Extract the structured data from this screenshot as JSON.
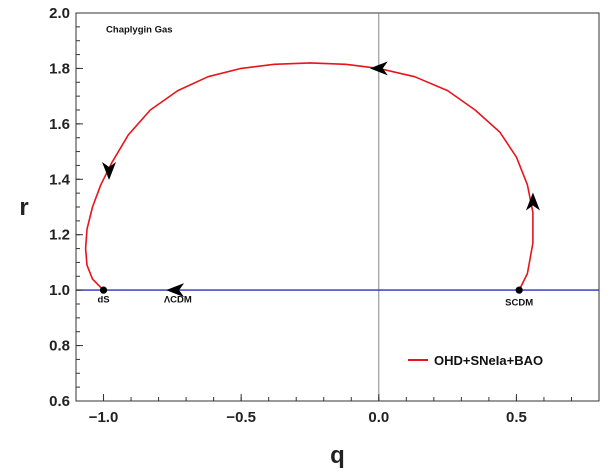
{
  "chart_data": {
    "type": "line",
    "title": "",
    "xlabel": "q",
    "ylabel": "r",
    "xlim": [
      -1.1,
      0.8
    ],
    "ylim": [
      0.6,
      2.0
    ],
    "x_ticks": [
      -1.0,
      -0.5,
      0.0,
      0.5
    ],
    "y_ticks": [
      0.6,
      0.8,
      1.0,
      1.2,
      1.4,
      1.6,
      1.8,
      2.0
    ],
    "x_tick_labels": [
      "−1.0",
      "−0.5",
      "0.0",
      "0.5"
    ],
    "y_tick_labels": [
      "0.6",
      "0.8",
      "1.0",
      "1.2",
      "1.4",
      "1.6",
      "1.8",
      "2.0"
    ],
    "grid": false,
    "legend": {
      "position": "bottom-right",
      "entries": [
        "OHD+SNeIa+BAO"
      ]
    },
    "series": [
      {
        "name": "OHD+SNeIa+BAO",
        "color": "#e8141c",
        "x": [
          0.51,
          0.54,
          0.56,
          0.56,
          0.54,
          0.5,
          0.44,
          0.35,
          0.25,
          0.13,
          0.0,
          -0.12,
          -0.25,
          -0.38,
          -0.5,
          -0.62,
          -0.73,
          -0.83,
          -0.91,
          -0.97,
          -1.01,
          -1.04,
          -1.06,
          -1.065,
          -1.06,
          -1.04,
          -1.01,
          -1.0
        ],
        "y": [
          1.0,
          1.06,
          1.17,
          1.28,
          1.38,
          1.48,
          1.57,
          1.65,
          1.72,
          1.77,
          1.8,
          1.815,
          1.82,
          1.815,
          1.8,
          1.77,
          1.72,
          1.65,
          1.56,
          1.46,
          1.38,
          1.3,
          1.22,
          1.15,
          1.09,
          1.04,
          1.01,
          1.0
        ]
      },
      {
        "name": "",
        "color": "#2b2fc4",
        "x": [
          -1.1,
          0.8
        ],
        "y": [
          1.0,
          1.0
        ]
      }
    ],
    "points": [
      {
        "label": "dS",
        "x": -1.0,
        "y": 1.0
      },
      {
        "label": "SCDM",
        "x": 0.51,
        "y": 1.0
      }
    ],
    "arrows": [
      {
        "x": 0.56,
        "y": 1.32,
        "dir": "up"
      },
      {
        "x": 0.0,
        "y": 1.8,
        "dir": "left"
      },
      {
        "x": -0.98,
        "y": 1.43,
        "dir": "down"
      },
      {
        "x": -0.74,
        "y": 1.0,
        "dir": "left"
      }
    ],
    "annotations": [
      {
        "text": "Chaplygin Gas",
        "x": -0.87,
        "y": 1.93
      },
      {
        "text": "ΛCDM",
        "x": -0.73,
        "y": 0.955
      },
      {
        "text": "dS",
        "x": -1.0,
        "y": 0.955
      },
      {
        "text": "SCDM",
        "x": 0.51,
        "y": 0.945
      }
    ],
    "vertical_line_x": 0.0
  }
}
